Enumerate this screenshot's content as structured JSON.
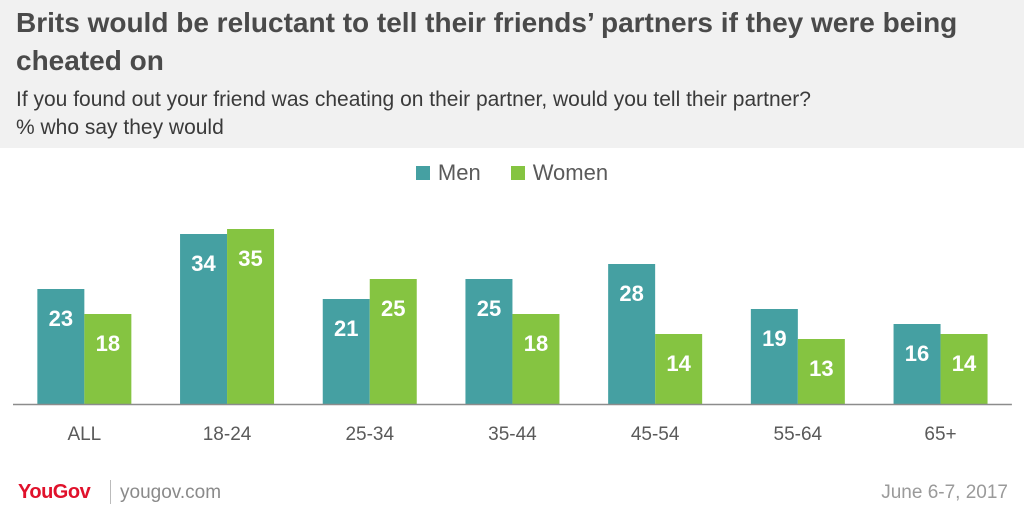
{
  "header": {
    "title": "Brits would be reluctant to tell their friends’ partners if they were being cheated on",
    "subtitle_line1": "If you found out your friend was cheating on their partner, would you tell their partner?",
    "subtitle_line2": "% who say they would"
  },
  "legend": {
    "men_label": "Men",
    "women_label": "Women"
  },
  "colors": {
    "men": "#45a0a2",
    "women": "#85c441",
    "label_text": "#ffffff",
    "axis": "#8c8c8c",
    "tick_text": "#5a5a5a",
    "header_bg": "#f1f1f1",
    "brand": "#e0112b"
  },
  "chart_data": {
    "type": "bar",
    "categories": [
      "ALL",
      "18-24",
      "25-34",
      "35-44",
      "45-54",
      "55-64",
      "65+"
    ],
    "series": [
      {
        "name": "Men",
        "values": [
          23,
          34,
          21,
          25,
          28,
          19,
          16
        ]
      },
      {
        "name": "Women",
        "values": [
          18,
          35,
          25,
          18,
          14,
          13,
          14
        ]
      }
    ],
    "title": "Brits would be reluctant to tell their friends’ partners if they were being cheated on",
    "subtitle": "If you found out your friend was cheating on their partner, would you tell their partner? % who say they would",
    "xlabel": "",
    "ylabel": "",
    "ylim": [
      0,
      35
    ],
    "grid": false,
    "legend_position": "top-center",
    "data_labels": true
  },
  "footer": {
    "logo": "YouGov",
    "url": "yougov.com",
    "date": "June 6-7, 2017"
  }
}
